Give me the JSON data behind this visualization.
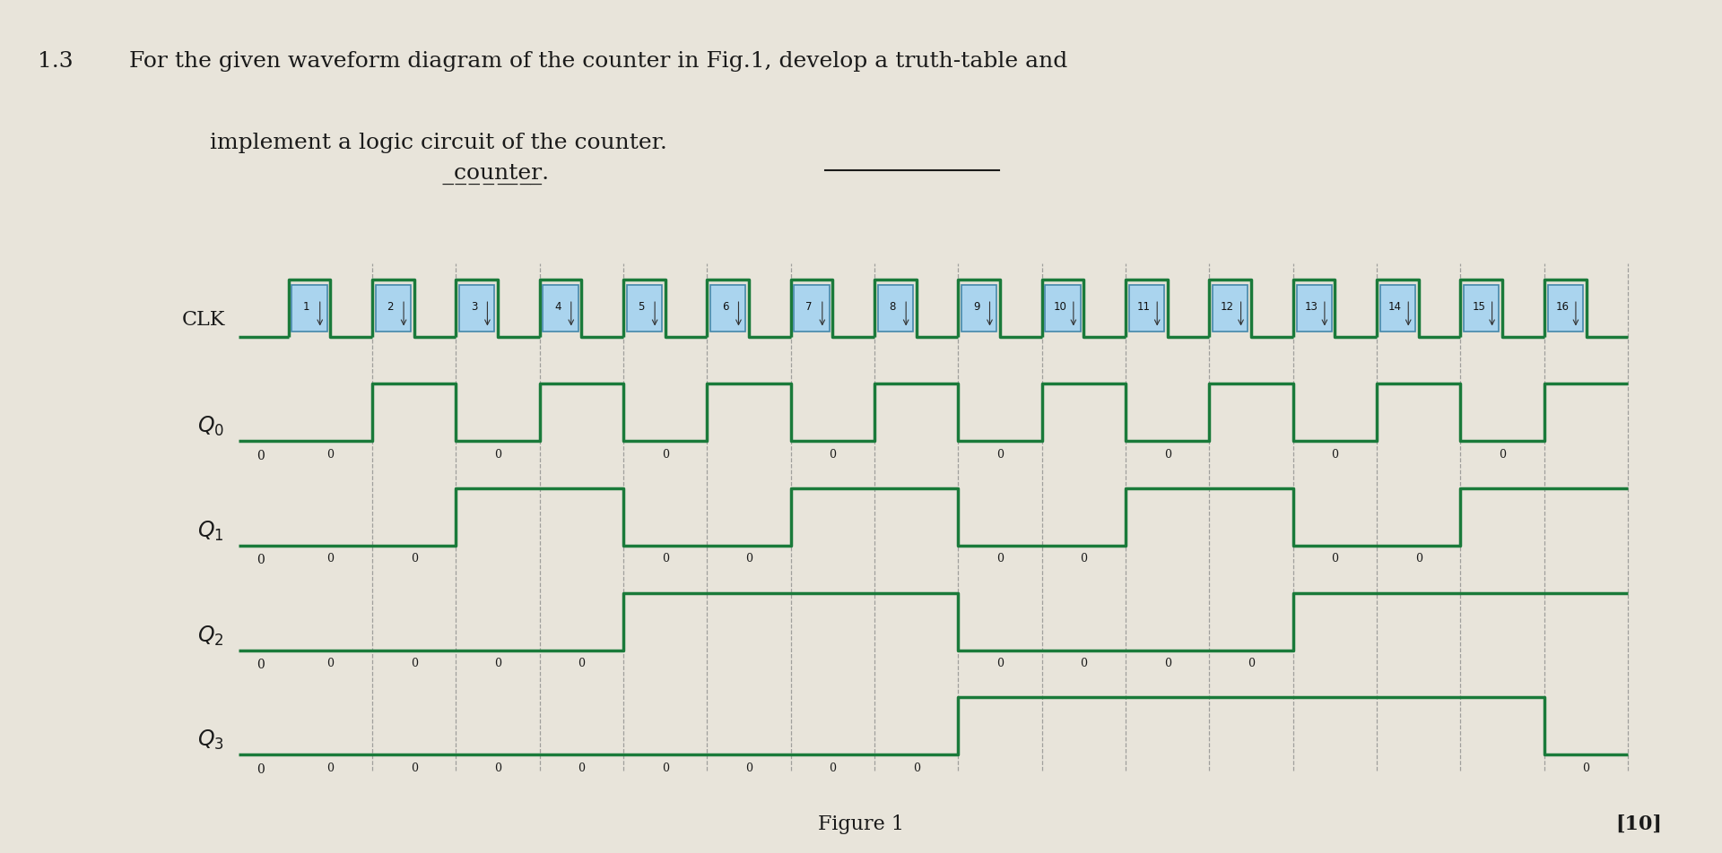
{
  "title_num": "1.3",
  "title_line1": "For the given waveform diagram of the counter in Fig.1, develop a truth-table and",
  "title_line2": "implement a logic circuit of the counter.",
  "underline_word": "counter.",
  "figure_label": "Figure 1",
  "score_label": "[10]",
  "background_color": "#e8e4da",
  "waveform_color": "#1a7a3a",
  "clk_box_facecolor": "#aad4ee",
  "clk_box_edgecolor": "#4488aa",
  "text_color": "#1a1a1a",
  "dashed_color": "#888888",
  "n_clk": 16,
  "clk_label": "CLK",
  "signal_labels_main": [
    "Q",
    "Q",
    "Q",
    "Q"
  ],
  "signal_subscripts": [
    "0",
    "1",
    "2",
    "3"
  ],
  "Q0": [
    0,
    1,
    0,
    1,
    0,
    1,
    0,
    1,
    0,
    1,
    0,
    1,
    0,
    1,
    0,
    1
  ],
  "Q1": [
    0,
    0,
    1,
    1,
    0,
    0,
    1,
    1,
    0,
    0,
    1,
    1,
    0,
    0,
    1,
    1
  ],
  "Q2": [
    0,
    0,
    0,
    0,
    1,
    1,
    1,
    1,
    0,
    0,
    0,
    0,
    1,
    1,
    1,
    1
  ],
  "Q3": [
    0,
    0,
    0,
    0,
    0,
    0,
    0,
    0,
    1,
    1,
    1,
    1,
    1,
    1,
    1,
    0
  ],
  "clk_numbers": [
    "1",
    "2",
    "3",
    "4",
    "5",
    "6",
    "7",
    "8",
    "9",
    "10",
    "11",
    "12",
    "13",
    "14",
    "15",
    "16"
  ],
  "title_fontsize": 18,
  "clk_num_fontsize": 8.5,
  "label_fontsize": 16,
  "anno_fontsize": 9,
  "score_fontsize": 16
}
